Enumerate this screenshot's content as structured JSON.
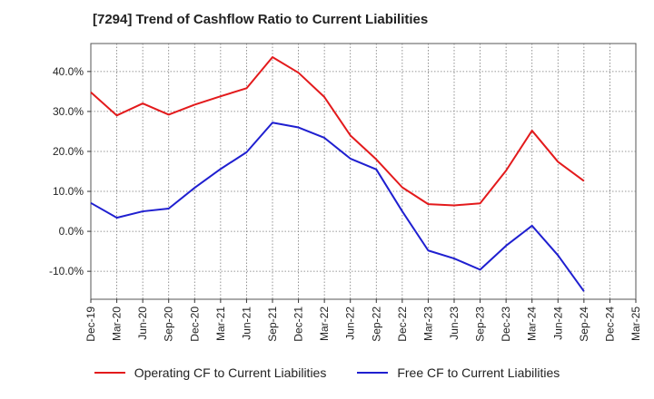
{
  "title": "[7294]  Trend of Cashflow Ratio to Current Liabilities",
  "colors": {
    "operating": "#e31a1c",
    "free": "#1f1fd0",
    "grid": "#888888",
    "axis": "#333333"
  },
  "chart_data": {
    "type": "line",
    "title": "[7294]  Trend of Cashflow Ratio to Current Liabilities",
    "xlabel": "",
    "ylabel": "",
    "categories": [
      "Dec-19",
      "Mar-20",
      "Jun-20",
      "Sep-20",
      "Dec-20",
      "Mar-21",
      "Jun-21",
      "Sep-21",
      "Dec-21",
      "Mar-22",
      "Jun-22",
      "Sep-22",
      "Dec-22",
      "Mar-23",
      "Jun-23",
      "Sep-23",
      "Dec-23",
      "Mar-24",
      "Jun-24",
      "Sep-24",
      "Dec-24",
      "Mar-25"
    ],
    "ylim": [
      -17,
      47
    ],
    "yticks": [
      -10,
      0,
      10,
      20,
      30,
      40
    ],
    "ytick_labels": [
      "-10.0%",
      "0.0%",
      "10.0%",
      "20.0%",
      "30.0%",
      "40.0%"
    ],
    "grid": true,
    "legend_position": "bottom",
    "series": [
      {
        "name": "Operating CF to Current Liabilities",
        "color": "#e31a1c",
        "values": [
          34.8,
          29.0,
          32.0,
          29.2,
          31.7,
          33.8,
          35.8,
          43.6,
          39.7,
          33.6,
          24.0,
          18.0,
          11.0,
          6.8,
          6.5,
          7.0,
          15.2,
          25.2,
          17.4,
          12.6,
          null,
          null
        ]
      },
      {
        "name": "Free CF to Current Liabilities",
        "color": "#1f1fd0",
        "values": [
          7.1,
          3.4,
          5.0,
          5.7,
          10.9,
          15.6,
          19.8,
          27.2,
          26.0,
          23.4,
          18.2,
          15.5,
          5.0,
          -4.8,
          -6.8,
          -9.6,
          -3.6,
          1.4,
          -6.0,
          -15.0,
          null,
          null
        ]
      }
    ]
  }
}
